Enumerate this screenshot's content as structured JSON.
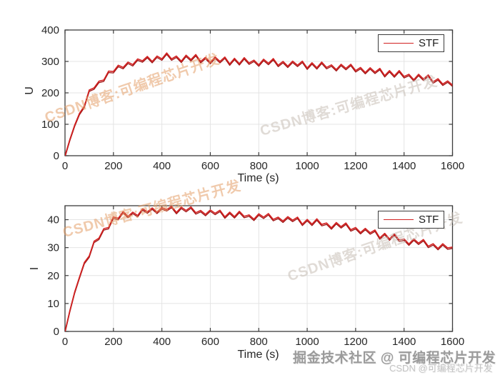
{
  "figure": {
    "background": "#ffffff"
  },
  "chart_data": [
    {
      "type": "line",
      "title": "",
      "xlabel": "Time (s)",
      "ylabel": "U",
      "xlim": [
        0,
        1600
      ],
      "ylim": [
        0,
        400
      ],
      "xticks": [
        0,
        200,
        400,
        600,
        800,
        1000,
        1200,
        1400,
        1600
      ],
      "yticks": [
        0,
        100,
        200,
        300,
        400
      ],
      "grid": true,
      "grid_color": "#e4e4e4",
      "axis_color": "#3c3c3c",
      "line_color": "#d22121",
      "line_shadow_color": "#9e1212",
      "legend": [
        "STF"
      ],
      "legend_position": "top-right",
      "series": [
        {
          "name": "STF",
          "x_start": 0,
          "x_step": 20,
          "values": [
            0,
            52,
            98,
            135,
            158,
            209,
            216,
            237,
            241,
            269,
            268,
            288,
            281,
            298,
            290,
            308,
            302,
            316,
            300,
            317,
            308,
            327,
            308,
            317,
            301,
            320,
            306,
            322,
            300,
            313,
            297,
            314,
            300,
            314,
            292,
            310,
            293,
            312,
            295,
            304,
            289,
            307,
            294,
            309,
            288,
            300,
            285,
            301,
            288,
            301,
            279,
            296,
            280,
            298,
            281,
            289,
            274,
            291,
            278,
            291,
            271,
            281,
            265,
            280,
            266,
            278,
            255,
            271,
            254,
            271,
            252,
            259,
            242,
            259,
            244,
            257,
            235,
            245,
            228,
            238,
            225
          ]
        }
      ]
    },
    {
      "type": "line",
      "title": "",
      "xlabel": "Time (s)",
      "ylabel": "I",
      "xlim": [
        0,
        1600
      ],
      "ylim": [
        0,
        45
      ],
      "xticks": [
        0,
        200,
        400,
        600,
        800,
        1000,
        1200,
        1400,
        1600
      ],
      "yticks": [
        0,
        10,
        20,
        30,
        40
      ],
      "grid": true,
      "grid_color": "#e4e4e4",
      "axis_color": "#3c3c3c",
      "line_color": "#d22121",
      "line_shadow_color": "#9e1212",
      "legend": [
        "STF"
      ],
      "legend_position": "top-right",
      "series": [
        {
          "name": "STF",
          "x_start": 0,
          "x_step": 20,
          "values": [
            0,
            7.5,
            14.2,
            19.5,
            24.7,
            27,
            32.3,
            33.4,
            36.8,
            37.2,
            41,
            40.5,
            42.9,
            41.2,
            42.7,
            41.5,
            43.9,
            42.8,
            44.2,
            42.7,
            44.3,
            43.6,
            44.8,
            42.6,
            44.5,
            43.3,
            44.6,
            42.5,
            43.3,
            41.9,
            43.5,
            42.3,
            43.4,
            41,
            42.7,
            41.1,
            43,
            41.2,
            41.7,
            40.2,
            42.1,
            40.9,
            42.2,
            40.1,
            40.9,
            39.5,
            41.1,
            39.8,
            40.9,
            38.4,
            40.1,
            38.4,
            40.3,
            38.3,
            38.8,
            37.1,
            39,
            37.5,
            38.8,
            36.4,
            37.2,
            35.4,
            36.9,
            35.3,
            36.3,
            33.5,
            35.1,
            33.1,
            34.9,
            32.7,
            33.1,
            31.3,
            33.1,
            31.6,
            32.9,
            30.5,
            31.4,
            29.7,
            31.4,
            29.9,
            30.2
          ]
        }
      ]
    }
  ],
  "watermarks": {
    "top_left": {
      "text": "CSDN博客:可编程芯片开发",
      "color": "rgba(228,158,104,0.55)"
    },
    "top_right": {
      "text": "CSDN博客:可编程芯片开发",
      "color": "rgba(198,190,180,0.55)"
    },
    "bottom_left": {
      "text": "CSDN博客:可编程芯片开发",
      "color": "rgba(228,158,104,0.55)"
    },
    "bottom_right": {
      "text": "CSDN博客:可编程芯片开发",
      "color": "rgba(198,190,180,0.55)"
    }
  },
  "footer": {
    "juejin_credit": "掘金技术社区 @ 可编程芯片开发",
    "csdn_credit": "CSDN @可编程芯片开发"
  }
}
